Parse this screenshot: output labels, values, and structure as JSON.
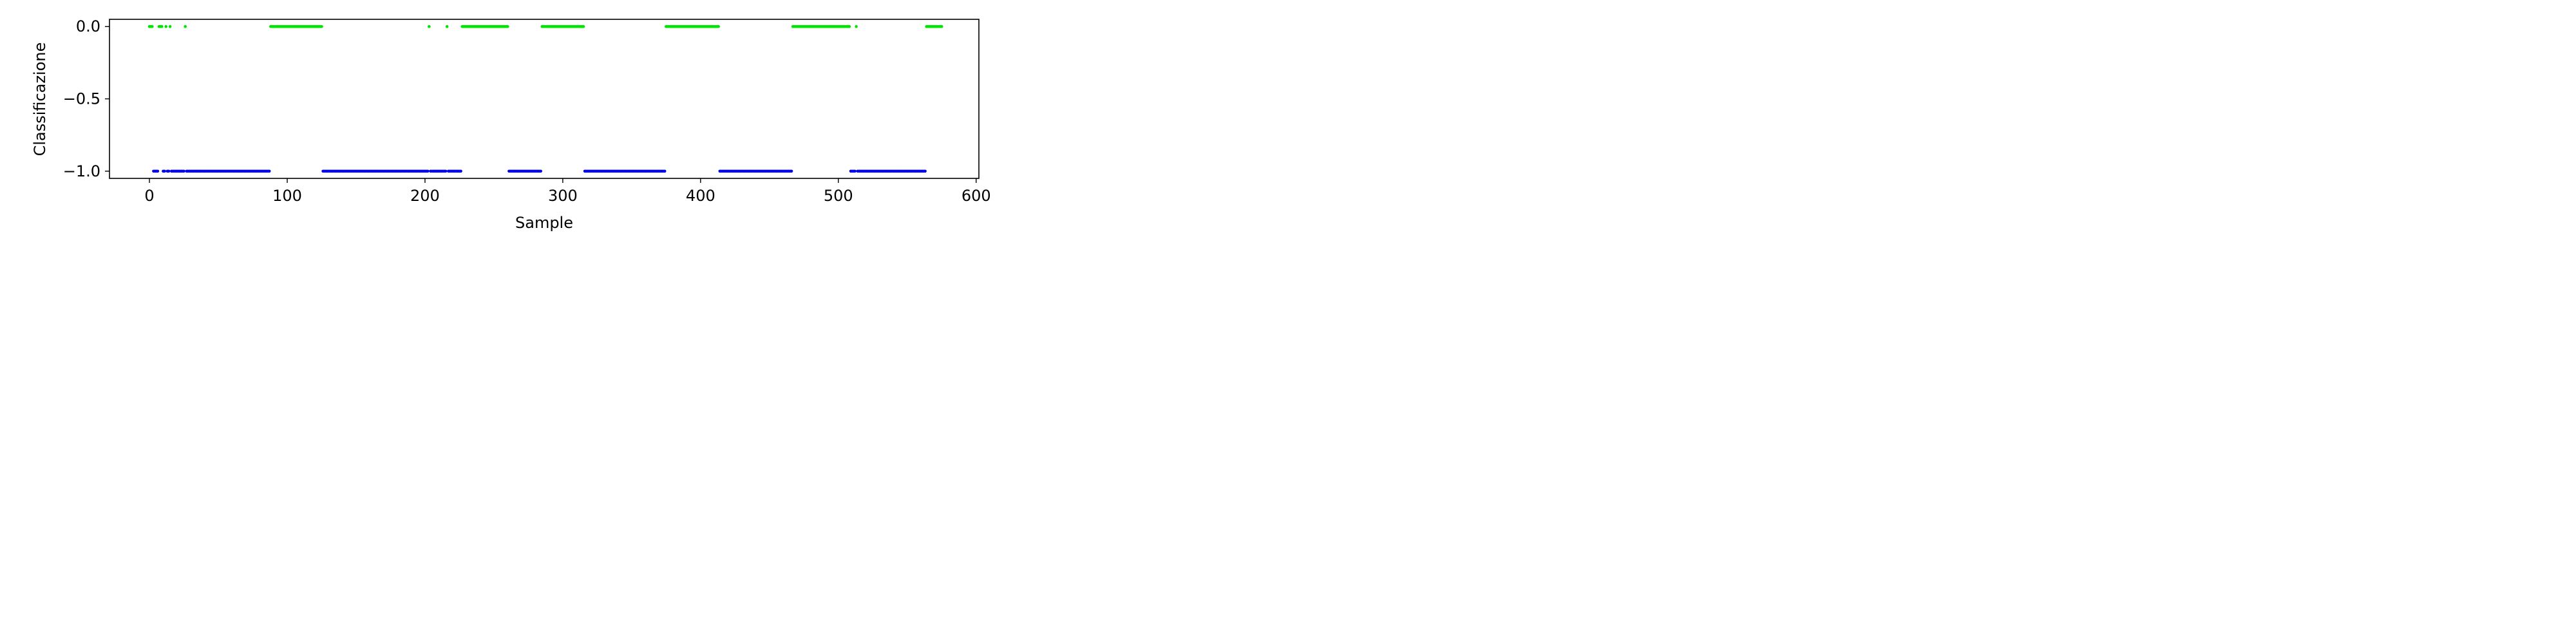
{
  "chart_data": {
    "type": "scatter",
    "title": "",
    "xlabel": "Sample",
    "ylabel": "Classificazione",
    "xlim": [
      -29,
      602
    ],
    "ylim": [
      -1.05,
      0.05
    ],
    "xticks": [
      0,
      100,
      200,
      300,
      400,
      500,
      600
    ],
    "yticks": [
      0.0,
      -0.5,
      -1.0
    ],
    "grid": false,
    "legend": "none",
    "point_rule": "each integer sample from 0 to 575 is plotted at y = 0.0 (green) if it appears in class_0_samples, otherwise at y = -1.0 (blue)",
    "x_range": [
      0,
      575
    ],
    "class_0_samples": [
      0,
      1,
      2,
      7,
      8,
      9,
      12,
      15,
      26,
      [
        88,
        125
      ],
      203,
      216,
      [
        227,
        260
      ],
      [
        285,
        315
      ],
      [
        375,
        413
      ],
      [
        467,
        508
      ],
      513,
      [
        564,
        575
      ]
    ],
    "series": [
      {
        "label": "0.0",
        "y": 0.0,
        "color": "#00e600"
      },
      {
        "label": "-1.0",
        "y": -1.0,
        "color": "#0000e6"
      }
    ]
  }
}
